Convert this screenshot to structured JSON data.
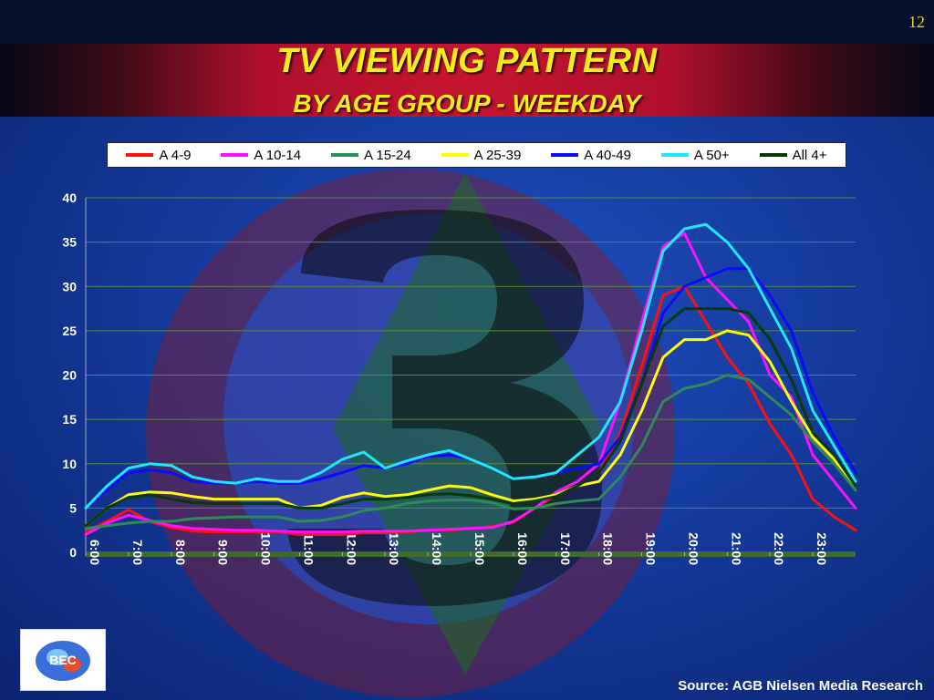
{
  "slide_number": "12",
  "title": "TV VIEWING PATTERN",
  "subtitle": "BY AGE GROUP - WEEKDAY",
  "source": "Source: AGB Nielsen Media Research",
  "logo_text": "BEC",
  "colors": {
    "axis_text": "#ffffff",
    "grid": "#5a8a3a",
    "baseline": "#3f6b2a",
    "title": "#f4ef1a"
  },
  "chart_data": {
    "type": "line",
    "title": "",
    "xlabel": "",
    "ylabel": "",
    "ylim": [
      0,
      40
    ],
    "y_ticks": [
      0,
      5,
      10,
      15,
      20,
      25,
      30,
      35,
      40
    ],
    "grid": true,
    "legend_position": "top",
    "x_range_hours": [
      6,
      24
    ],
    "x_ticks": [
      "6:00",
      "7:00",
      "8:00",
      "9:00",
      "10:00",
      "11:00",
      "12:00",
      "13:00",
      "14:00",
      "15:00",
      "16:00",
      "17:00",
      "18:00",
      "19:00",
      "20:00",
      "21:00",
      "22:00",
      "23:00"
    ],
    "x": [
      "6:00",
      "6:30",
      "7:00",
      "7:30",
      "8:00",
      "8:30",
      "9:00",
      "9:30",
      "10:00",
      "10:30",
      "11:00",
      "11:30",
      "12:00",
      "12:30",
      "13:00",
      "13:30",
      "14:00",
      "14:30",
      "15:00",
      "15:30",
      "16:00",
      "16:30",
      "17:00",
      "17:30",
      "18:00",
      "18:30",
      "19:00",
      "19:30",
      "20:00",
      "20:30",
      "21:00",
      "21:30",
      "22:00",
      "22:30",
      "23:00",
      "23:30",
      "24:00"
    ],
    "series": [
      {
        "name": "A 4-9",
        "color": "#ff1010",
        "values": [
          2.3,
          3.5,
          4.8,
          3.5,
          2.8,
          2.4,
          2.3,
          2.3,
          2.3,
          2.3,
          2.0,
          2.0,
          2.0,
          2.2,
          2.2,
          2.3,
          2.5,
          2.5,
          2.7,
          2.9,
          3.4,
          5.0,
          6.5,
          7.5,
          9.0,
          13.5,
          21.0,
          29.0,
          30.0,
          26.0,
          22.0,
          19.0,
          14.5,
          11.0,
          6.0,
          4.0,
          2.5
        ]
      },
      {
        "name": "A 10-14",
        "color": "#ff10ff",
        "values": [
          2.0,
          3.3,
          4.2,
          3.6,
          3.0,
          2.7,
          2.6,
          2.5,
          2.5,
          2.4,
          2.3,
          2.3,
          2.3,
          2.4,
          2.4,
          2.4,
          2.5,
          2.6,
          2.7,
          2.8,
          3.5,
          5.0,
          6.8,
          8.0,
          10.0,
          17.0,
          26.0,
          34.5,
          36.0,
          31.0,
          28.5,
          26.0,
          20.0,
          17.5,
          11.0,
          8.0,
          5.0
        ]
      },
      {
        "name": "A 15-24",
        "color": "#2e8b57",
        "values": [
          2.7,
          3.0,
          3.3,
          3.5,
          3.5,
          3.8,
          3.9,
          4.0,
          4.0,
          4.0,
          3.5,
          3.6,
          4.0,
          4.7,
          5.0,
          5.5,
          5.8,
          5.9,
          5.9,
          5.6,
          4.9,
          5.0,
          5.5,
          5.8,
          6.0,
          8.5,
          12.0,
          17.0,
          18.5,
          19.0,
          20.0,
          19.5,
          17.5,
          15.5,
          12.5,
          10.0,
          7.0
        ]
      },
      {
        "name": "A 25-39",
        "color": "#ffff00",
        "values": [
          3.0,
          5.0,
          6.5,
          6.8,
          6.7,
          6.3,
          6.0,
          6.0,
          6.0,
          6.0,
          5.0,
          5.3,
          6.2,
          6.7,
          6.3,
          6.5,
          7.0,
          7.5,
          7.3,
          6.5,
          5.8,
          6.0,
          6.5,
          7.5,
          8.0,
          11.0,
          16.0,
          22.0,
          24.0,
          24.0,
          25.0,
          24.5,
          21.5,
          17.0,
          13.0,
          10.5,
          7.5
        ]
      },
      {
        "name": "A 40-49",
        "color": "#0a0aff",
        "values": [
          5.0,
          7.0,
          9.0,
          9.3,
          9.0,
          8.0,
          7.8,
          7.8,
          8.0,
          7.8,
          7.8,
          8.3,
          9.0,
          9.8,
          9.5,
          10.0,
          10.8,
          11.0,
          10.5,
          9.5,
          8.3,
          8.5,
          9.0,
          9.5,
          10.0,
          13.0,
          19.0,
          27.0,
          30.0,
          31.0,
          32.0,
          32.0,
          29.0,
          25.0,
          18.0,
          13.0,
          9.0
        ]
      },
      {
        "name": "A 50+",
        "color": "#1ee8ff",
        "values": [
          5.0,
          7.5,
          9.5,
          10.0,
          9.8,
          8.5,
          8.0,
          7.8,
          8.3,
          8.0,
          8.0,
          9.0,
          10.5,
          11.3,
          9.5,
          10.3,
          11.0,
          11.5,
          10.5,
          9.5,
          8.3,
          8.5,
          9.0,
          11.0,
          13.0,
          17.0,
          25.0,
          34.0,
          36.5,
          37.0,
          35.0,
          32.0,
          27.5,
          23.0,
          16.0,
          12.0,
          8.0
        ]
      },
      {
        "name": "All 4+",
        "color": "#063a06",
        "values": [
          3.0,
          5.0,
          6.2,
          6.5,
          6.0,
          5.6,
          5.5,
          5.5,
          5.5,
          5.5,
          5.0,
          5.0,
          5.5,
          6.0,
          6.0,
          6.2,
          6.5,
          6.6,
          6.4,
          6.0,
          5.5,
          5.8,
          6.3,
          7.5,
          9.0,
          12.5,
          19.0,
          25.5,
          27.5,
          27.5,
          27.5,
          27.0,
          24.0,
          19.5,
          13.5,
          11.0,
          7.5
        ]
      }
    ]
  }
}
